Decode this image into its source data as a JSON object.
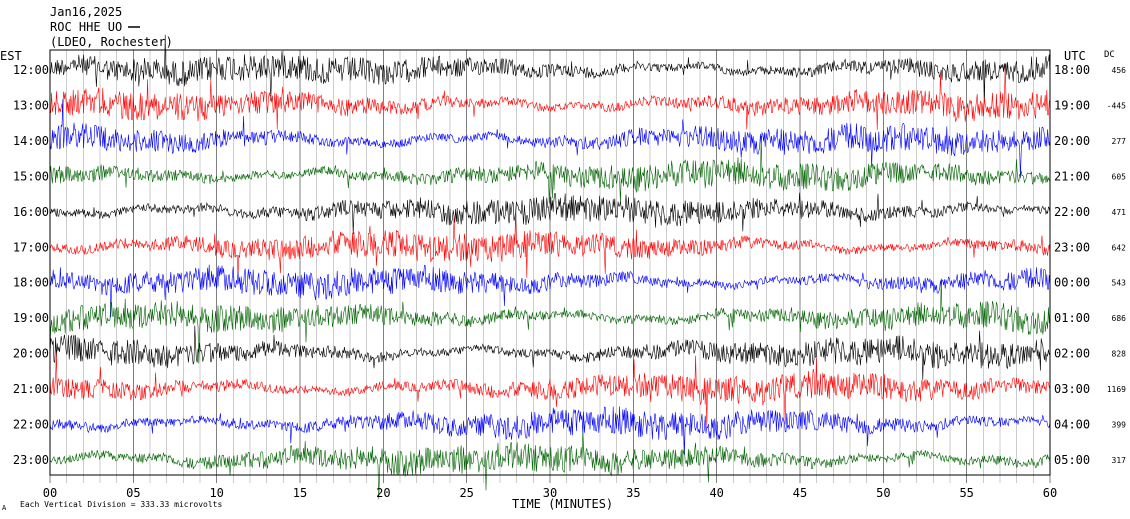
{
  "header": {
    "date": "Jan16,2025",
    "station": "ROC HHE UO",
    "location": "(LDEO, Rochester)"
  },
  "left_zone_label": "EST",
  "right_zone_label": "UTC",
  "dc_label": "DC",
  "footer": {
    "scale_note": "Each Vertical Division = 333.33 microvolts",
    "corner_mark": "A"
  },
  "colors": {
    "trace_cycle": [
      "#000000",
      "#ff0000",
      "#0000ff",
      "#006400"
    ]
  },
  "chart_data": {
    "type": "line",
    "title": "",
    "xlabel": "TIME (MINUTES)",
    "ylabel": "",
    "xlim": [
      0,
      60
    ],
    "x_ticks": [
      "00",
      "05",
      "10",
      "15",
      "20",
      "25",
      "30",
      "35",
      "40",
      "45",
      "50",
      "55",
      "60"
    ],
    "grid": "vertical lines at each minute",
    "rows": [
      {
        "est": "12:00",
        "utc": "18:00",
        "dc": "456",
        "color": "#000000"
      },
      {
        "est": "13:00",
        "utc": "19:00",
        "dc": "-445",
        "color": "#ff0000"
      },
      {
        "est": "14:00",
        "utc": "20:00",
        "dc": "277",
        "color": "#0000ff"
      },
      {
        "est": "15:00",
        "utc": "21:00",
        "dc": "605",
        "color": "#006400"
      },
      {
        "est": "16:00",
        "utc": "22:00",
        "dc": "471",
        "color": "#000000"
      },
      {
        "est": "17:00",
        "utc": "23:00",
        "dc": "642",
        "color": "#ff0000"
      },
      {
        "est": "18:00",
        "utc": "00:00",
        "dc": "543",
        "color": "#0000ff"
      },
      {
        "est": "19:00",
        "utc": "01:00",
        "dc": "686",
        "color": "#006400"
      },
      {
        "est": "20:00",
        "utc": "02:00",
        "dc": "828",
        "color": "#000000"
      },
      {
        "est": "21:00",
        "utc": "03:00",
        "dc": "1169",
        "color": "#ff0000"
      },
      {
        "est": "22:00",
        "utc": "04:00",
        "dc": "399",
        "color": "#0000ff"
      },
      {
        "est": "23:00",
        "utc": "05:00",
        "dc": "317",
        "color": "#006400"
      }
    ]
  }
}
